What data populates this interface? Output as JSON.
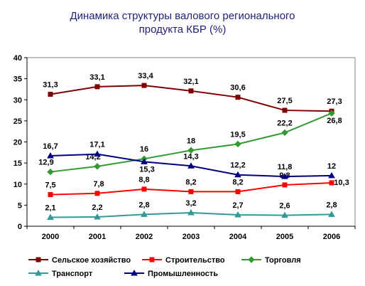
{
  "chart_data": {
    "type": "line",
    "title_lines": [
      "Динамика структуры валового регионального",
      "продукта КБР (%)"
    ],
    "xlabel": "",
    "ylabel": "",
    "categories": [
      "2000",
      "2001",
      "2002",
      "2003",
      "2004",
      "2005",
      "2006"
    ],
    "y_ticks": [
      "0",
      "5",
      "10",
      "15",
      "20",
      "25",
      "30",
      "35",
      "40"
    ],
    "ylim": [
      0,
      40
    ],
    "grid": false,
    "legend_position": "bottom",
    "series": [
      {
        "name": "Сельское хозяйство",
        "color": "#800000",
        "marker": "square",
        "values": [
          31.3,
          33.1,
          33.4,
          32.1,
          30.6,
          27.5,
          27.3
        ],
        "labels": [
          "31,3",
          "33,1",
          "33,4",
          "32,1",
          "30,6",
          "27,5",
          "27,3"
        ]
      },
      {
        "name": "Строительство",
        "color": "#ff0000",
        "marker": "square",
        "values": [
          7.5,
          7.8,
          8.8,
          8.2,
          8.2,
          9.8,
          10.3
        ],
        "labels": [
          "7,5",
          "7,8",
          "8,8",
          "8,2",
          "8,2",
          "9,8",
          "10,3"
        ]
      },
      {
        "name": "Торговля",
        "color": "#339933",
        "marker": "diamond",
        "values": [
          12.9,
          14.2,
          16,
          18,
          19.5,
          22.2,
          26.8
        ],
        "labels": [
          "12,9",
          "14,2",
          "16",
          "18",
          "19,5",
          "22,2",
          "26,8"
        ]
      },
      {
        "name": "Транспорт",
        "color": "#339999",
        "marker": "triangle",
        "values": [
          2.1,
          2.2,
          2.8,
          3.2,
          2.7,
          2.6,
          2.8
        ],
        "labels": [
          "2,1",
          "2,2",
          "2,8",
          "3,2",
          "2,7",
          "2,6",
          "2,8"
        ]
      },
      {
        "name": "Промышленность",
        "color": "#000080",
        "marker": "triangle",
        "values": [
          16.7,
          17.1,
          15.3,
          14.3,
          12.2,
          11.8,
          12
        ],
        "labels": [
          "16,7",
          "17,1",
          "15,3",
          "14,3",
          "12,2",
          "11,8",
          "12"
        ]
      }
    ]
  }
}
